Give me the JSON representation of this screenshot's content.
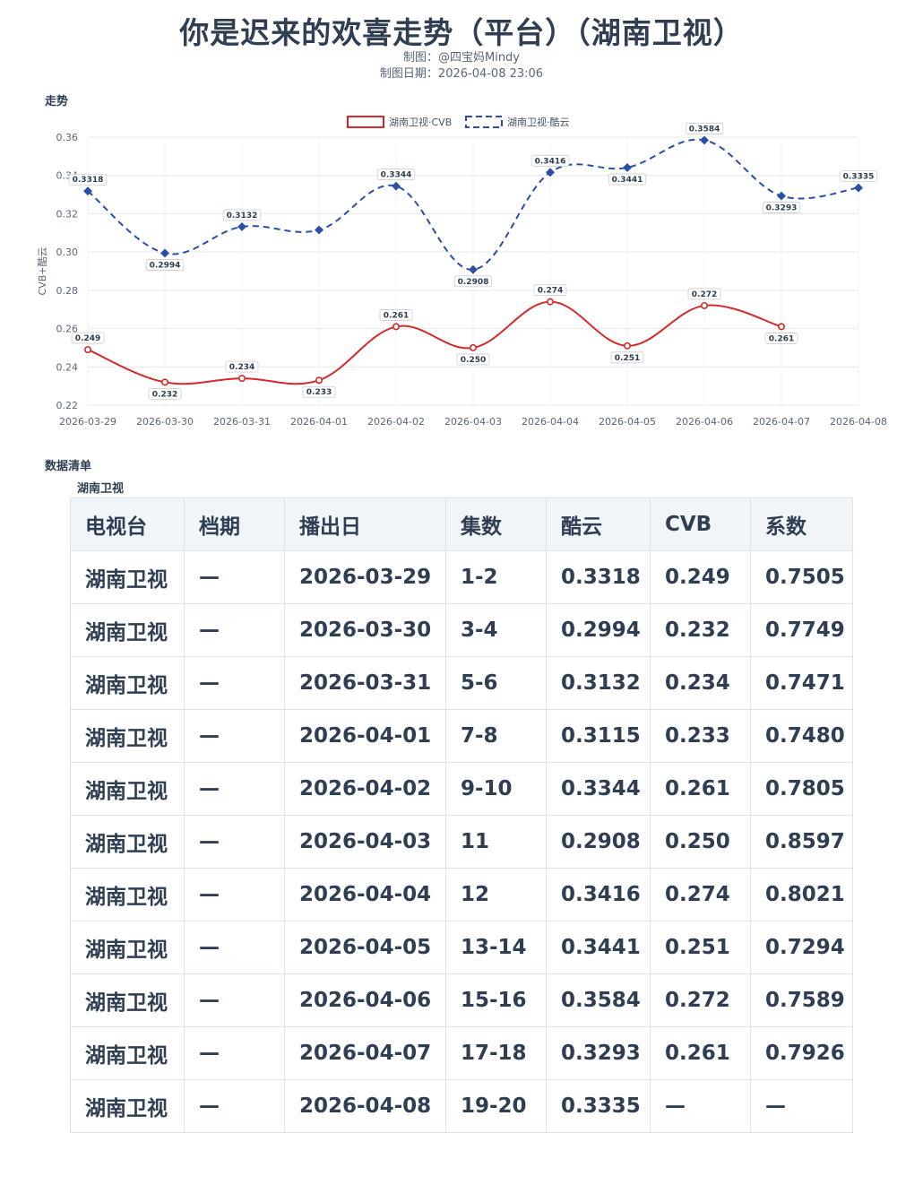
{
  "header": {
    "title": "你是迟来的欢喜走势（平台）（湖南卫视）",
    "author": "制图：@四宝妈Mindy",
    "date": "制图日期：2026-04-08 23:06"
  },
  "sections": {
    "trend": "走势",
    "data_list": "数据清单",
    "table_caption": "湖南卫视"
  },
  "chart_data": {
    "type": "line",
    "ylabel": "CVB+酷云",
    "xlabel": "",
    "ylim": [
      0.22,
      0.36
    ],
    "yticks": [
      "0.22",
      "0.24",
      "0.26",
      "0.28",
      "0.30",
      "0.32",
      "0.34",
      "0.36"
    ],
    "grid": true,
    "legend_placement": "top-center",
    "categories": [
      "2026-03-29",
      "2026-03-30",
      "2026-03-31",
      "2026-04-01",
      "2026-04-02",
      "2026-04-03",
      "2026-04-04",
      "2026-04-05",
      "2026-04-06",
      "2026-04-07",
      "2026-04-08"
    ],
    "series": [
      {
        "name": "湖南卫视·CVB",
        "color": "#d42a2a",
        "style": "solid",
        "values": [
          0.249,
          0.232,
          0.234,
          0.233,
          0.261,
          0.25,
          0.274,
          0.251,
          0.272,
          0.261,
          null
        ],
        "labels": [
          "0.249",
          "0.232",
          "0.234",
          "0.233",
          "0.261",
          "0.250",
          "0.274",
          "0.251",
          "0.272",
          "0.261",
          null
        ]
      },
      {
        "name": "湖南卫视·酷云",
        "color": "#2a4fa8",
        "style": "dashed",
        "values": [
          0.3318,
          0.2994,
          0.3132,
          0.3115,
          0.3344,
          0.2908,
          0.3416,
          0.3441,
          0.3584,
          0.3293,
          0.3335
        ],
        "labels": [
          "0.3318",
          "0.2994",
          "0.3132",
          null,
          "0.3344",
          "0.2908",
          "0.3416",
          "0.3441",
          "0.3584",
          "0.3293",
          "0.3335"
        ]
      }
    ]
  },
  "table": {
    "headers": [
      "电视台",
      "档期",
      "播出日",
      "集数",
      "酷云",
      "CVB",
      "系数"
    ],
    "rows": [
      [
        "湖南卫视",
        "—",
        "2026-03-29",
        "1-2",
        "0.3318",
        "0.249",
        "0.7505"
      ],
      [
        "湖南卫视",
        "—",
        "2026-03-30",
        "3-4",
        "0.2994",
        "0.232",
        "0.7749"
      ],
      [
        "湖南卫视",
        "—",
        "2026-03-31",
        "5-6",
        "0.3132",
        "0.234",
        "0.7471"
      ],
      [
        "湖南卫视",
        "—",
        "2026-04-01",
        "7-8",
        "0.3115",
        "0.233",
        "0.7480"
      ],
      [
        "湖南卫视",
        "—",
        "2026-04-02",
        "9-10",
        "0.3344",
        "0.261",
        "0.7805"
      ],
      [
        "湖南卫视",
        "—",
        "2026-04-03",
        "11",
        "0.2908",
        "0.250",
        "0.8597"
      ],
      [
        "湖南卫视",
        "—",
        "2026-04-04",
        "12",
        "0.3416",
        "0.274",
        "0.8021"
      ],
      [
        "湖南卫视",
        "—",
        "2026-04-05",
        "13-14",
        "0.3441",
        "0.251",
        "0.7294"
      ],
      [
        "湖南卫视",
        "—",
        "2026-04-06",
        "15-16",
        "0.3584",
        "0.272",
        "0.7589"
      ],
      [
        "湖南卫视",
        "—",
        "2026-04-07",
        "17-18",
        "0.3293",
        "0.261",
        "0.7926"
      ],
      [
        "湖南卫视",
        "—",
        "2026-04-08",
        "19-20",
        "0.3335",
        "—",
        "—"
      ]
    ]
  }
}
